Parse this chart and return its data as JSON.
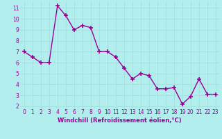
{
  "x": [
    0,
    1,
    2,
    3,
    4,
    5,
    6,
    7,
    8,
    9,
    10,
    11,
    12,
    13,
    14,
    15,
    16,
    17,
    18,
    19,
    20,
    21,
    22,
    23
  ],
  "y": [
    7.0,
    6.5,
    6.0,
    6.0,
    11.2,
    10.3,
    9.0,
    9.4,
    9.2,
    7.0,
    7.0,
    6.5,
    5.5,
    4.5,
    5.0,
    4.8,
    3.6,
    3.6,
    3.7,
    2.2,
    2.9,
    4.5,
    3.1,
    3.1
  ],
  "line_color": "#990099",
  "marker": "+",
  "marker_size": 5,
  "marker_lw": 1.2,
  "line_width": 1.0,
  "background_color": "#b2eeee",
  "grid_color": "#aadddd",
  "xlabel": "Windchill (Refroidissement éolien,°C)",
  "xlabel_color": "#990099",
  "tick_color": "#990099",
  "label_fontsize": 5.5,
  "xlabel_fontsize": 6.0,
  "ylim": [
    1.8,
    11.6
  ],
  "xlim": [
    -0.5,
    23.5
  ],
  "yticks": [
    2,
    3,
    4,
    5,
    6,
    7,
    8,
    9,
    10,
    11
  ],
  "xticks": [
    0,
    1,
    2,
    3,
    4,
    5,
    6,
    7,
    8,
    9,
    10,
    11,
    12,
    13,
    14,
    15,
    16,
    17,
    18,
    19,
    20,
    21,
    22,
    23
  ]
}
